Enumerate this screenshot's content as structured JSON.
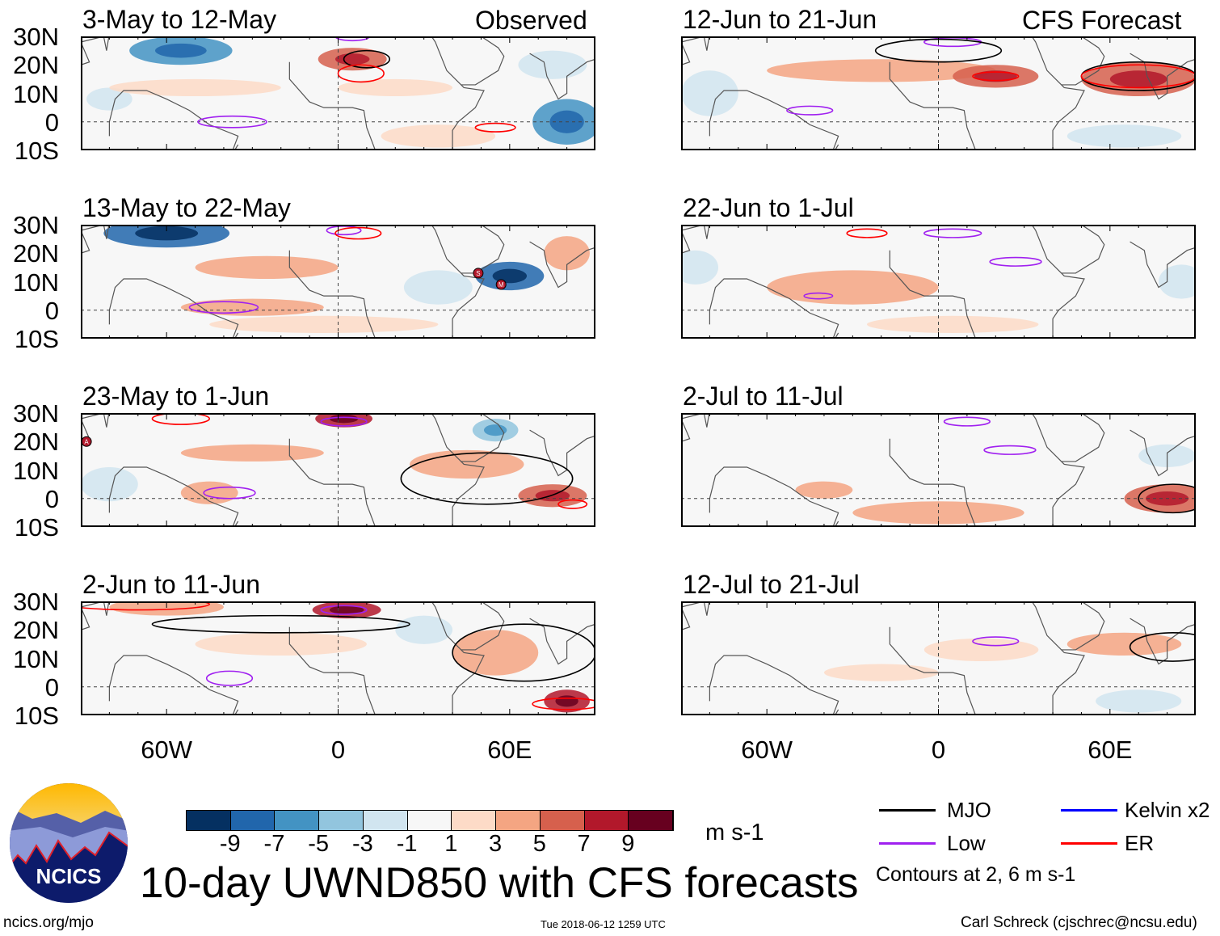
{
  "column_labels": {
    "left": "Observed",
    "right": "CFS Forecast"
  },
  "lat_labels": [
    "30N",
    "20N",
    "10N",
    "0",
    "10S"
  ],
  "lon_labels": [
    "60W",
    "0",
    "60E"
  ],
  "panels": [
    {
      "title": "3-May to 12-May",
      "column": "left",
      "row": 0,
      "anomalies": [
        [
          -55,
          25,
          18,
          5,
          -7
        ],
        [
          -80,
          8,
          8,
          4,
          -3
        ],
        [
          -50,
          12,
          30,
          3,
          2
        ],
        [
          5,
          22,
          12,
          4,
          6
        ],
        [
          20,
          12,
          20,
          3,
          2
        ],
        [
          80,
          0,
          12,
          8,
          -6
        ],
        [
          35,
          -5,
          20,
          4,
          2
        ],
        [
          75,
          20,
          12,
          5,
          -3
        ]
      ],
      "contours": [
        [
          "Low",
          5,
          30,
          6,
          1.5
        ],
        [
          "Low",
          -37,
          0,
          12,
          2
        ],
        [
          "MJO",
          10,
          22,
          8,
          3
        ],
        [
          "ER",
          8,
          17,
          8,
          3
        ],
        [
          "ER",
          55,
          -2,
          7,
          1.5
        ]
      ],
      "markers": []
    },
    {
      "title": "13-May to 22-May",
      "column": "left",
      "row": 1,
      "anomalies": [
        [
          -60,
          27,
          22,
          5,
          -8
        ],
        [
          -25,
          15,
          25,
          4,
          4
        ],
        [
          -30,
          1,
          25,
          3,
          3
        ],
        [
          60,
          12,
          12,
          5,
          -9
        ],
        [
          35,
          8,
          12,
          6,
          -3
        ],
        [
          -5,
          -5,
          40,
          3,
          2
        ],
        [
          80,
          20,
          8,
          6,
          3
        ]
      ],
      "contours": [
        [
          "Low",
          2,
          28,
          6,
          1.5
        ],
        [
          "ER",
          7,
          27,
          8,
          2
        ],
        [
          "Low",
          -40,
          1,
          12,
          2
        ]
      ],
      "markers": [
        [
          "S",
          49,
          13
        ],
        [
          "M",
          57,
          9
        ]
      ]
    },
    {
      "title": "23-May to 1-Jun",
      "column": "left",
      "row": 2,
      "anomalies": [
        [
          2,
          28,
          10,
          3,
          7
        ],
        [
          -30,
          16,
          25,
          3,
          3
        ],
        [
          45,
          12,
          20,
          5,
          4
        ],
        [
          75,
          1,
          12,
          4,
          5
        ],
        [
          55,
          24,
          8,
          4,
          -5
        ],
        [
          -45,
          2,
          10,
          4,
          4
        ],
        [
          -80,
          5,
          10,
          6,
          -2
        ]
      ],
      "contours": [
        [
          "Low",
          2,
          27,
          8,
          1.5
        ],
        [
          "Low",
          -38,
          2,
          9,
          2
        ],
        [
          "MJO",
          52,
          7,
          30,
          9
        ],
        [
          "ER",
          -55,
          28,
          10,
          2
        ],
        [
          "ER",
          82,
          -2,
          5,
          1.5
        ]
      ],
      "markers": [
        [
          "A",
          -88,
          20
        ]
      ]
    },
    {
      "title": "2-Jun to 11-Jun",
      "column": "left",
      "row": 3,
      "anomalies": [
        [
          3,
          27,
          12,
          3,
          8
        ],
        [
          -60,
          28,
          20,
          3,
          3
        ],
        [
          55,
          12,
          15,
          8,
          3
        ],
        [
          80,
          -5,
          8,
          4,
          7
        ],
        [
          -20,
          15,
          30,
          4,
          2
        ],
        [
          30,
          20,
          10,
          5,
          -3
        ]
      ],
      "contours": [
        [
          "Low",
          2,
          27,
          8,
          1.5
        ],
        [
          "Low",
          -38,
          3,
          8,
          2.5
        ],
        [
          "MJO",
          -20,
          22,
          45,
          3
        ],
        [
          "MJO",
          65,
          12,
          25,
          10
        ],
        [
          "ER",
          -70,
          29,
          25,
          2
        ],
        [
          "ER",
          80,
          -6,
          12,
          2
        ]
      ],
      "markers": []
    },
    {
      "title": "12-Jun to 21-Jun",
      "column": "right",
      "row": 0,
      "anomalies": [
        [
          -20,
          18,
          40,
          4,
          3
        ],
        [
          20,
          16,
          15,
          4,
          6
        ],
        [
          70,
          15,
          20,
          6,
          6
        ],
        [
          -80,
          10,
          10,
          8,
          -2
        ],
        [
          65,
          -5,
          20,
          4,
          -3
        ]
      ],
      "contours": [
        [
          "Low",
          5,
          28,
          10,
          1.5
        ],
        [
          "Low",
          -45,
          4,
          8,
          1.5
        ],
        [
          "MJO",
          0,
          25,
          22,
          4
        ],
        [
          "MJO",
          70,
          16,
          20,
          5
        ],
        [
          "ER",
          20,
          16,
          8,
          1.5
        ],
        [
          "ER",
          70,
          16,
          20,
          4
        ]
      ],
      "markers": []
    },
    {
      "title": "22-Jun to 1-Jul",
      "column": "right",
      "row": 2,
      "anomalies": [
        [
          -30,
          8,
          30,
          6,
          3
        ],
        [
          5,
          -5,
          30,
          3,
          2
        ],
        [
          -85,
          15,
          8,
          6,
          -2
        ],
        [
          85,
          10,
          8,
          6,
          -3
        ]
      ],
      "contours": [
        [
          "Low",
          5,
          27,
          10,
          1.5
        ],
        [
          "Low",
          27,
          17,
          9,
          1.5
        ],
        [
          "Low",
          -42,
          5,
          5,
          1
        ],
        [
          "ER",
          -25,
          27,
          7,
          1.5
        ]
      ],
      "markers": []
    },
    {
      "title": "2-Jul to 11-Jul",
      "column": "right",
      "row": 2,
      "anomalies": [
        [
          0,
          -5,
          30,
          4,
          3
        ],
        [
          -40,
          3,
          10,
          3,
          3
        ],
        [
          80,
          0,
          15,
          5,
          5
        ],
        [
          80,
          15,
          10,
          4,
          -3
        ]
      ],
      "contours": [
        [
          "Low",
          10,
          27,
          8,
          1.5
        ],
        [
          "Low",
          25,
          17,
          9,
          1.5
        ],
        [
          "MJO",
          82,
          0,
          12,
          5
        ]
      ],
      "markers": []
    },
    {
      "title": "12-Jul to 21-Jul",
      "column": "right",
      "row": 3,
      "anomalies": [
        [
          65,
          15,
          20,
          4,
          4
        ],
        [
          15,
          13,
          20,
          4,
          2
        ],
        [
          70,
          -5,
          15,
          4,
          -3
        ],
        [
          -20,
          5,
          20,
          3,
          2
        ]
      ],
      "contours": [
        [
          "Low",
          20,
          16,
          8,
          1.5
        ],
        [
          "MJO",
          82,
          14,
          15,
          5
        ]
      ],
      "markers": []
    }
  ],
  "colorbar": {
    "colors": [
      "#053061",
      "#2166ac",
      "#4393c3",
      "#92c5de",
      "#d1e5f0",
      "#f7f7f7",
      "#fddbc7",
      "#f4a582",
      "#d6604d",
      "#b2182b",
      "#67001f"
    ],
    "labels": [
      "-9",
      "-7",
      "-5",
      "-3",
      "-1",
      "1",
      "3",
      "5",
      "7",
      "9"
    ],
    "units": "m s-1"
  },
  "legend": {
    "items": [
      {
        "label": "MJO",
        "color": "#000000"
      },
      {
        "label": "Kelvin x2",
        "color": "#0000ff"
      },
      {
        "label": "Low",
        "color": "#a020f0"
      },
      {
        "label": "ER",
        "color": "#ff0000"
      }
    ],
    "note": "Contours at 2, 6 m s-1"
  },
  "logo_text": "NCICS",
  "main_title": "10-day UWND850 with CFS forecasts",
  "footer": {
    "url": "ncics.org/mjo",
    "timestamp": "Tue 2018-06-12 1259 UTC",
    "author": "Carl Schreck (cjschrec@ncsu.edu)"
  }
}
